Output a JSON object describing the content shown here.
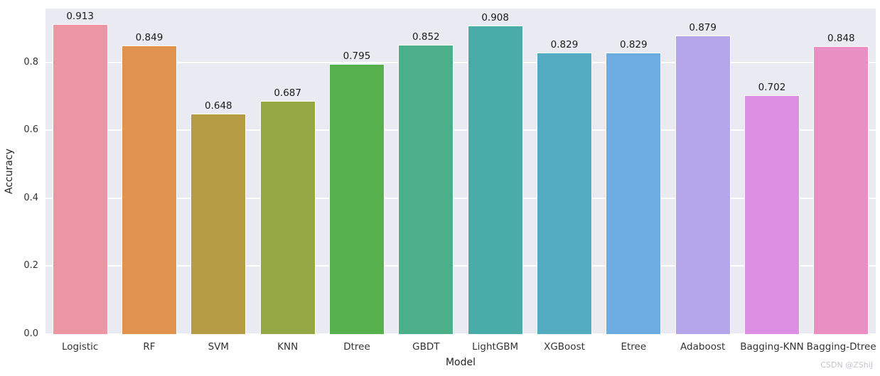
{
  "chart_data": {
    "type": "bar",
    "title": "",
    "xlabel": "Model",
    "ylabel": "Accuracy",
    "categories": [
      "Logistic",
      "RF",
      "SVM",
      "KNN",
      "Dtree",
      "GBDT",
      "LightGBM",
      "XGBoost",
      "Etree",
      "Adaboost",
      "Bagging-KNN",
      "Bagging-Dtree"
    ],
    "values": [
      0.913,
      0.849,
      0.648,
      0.687,
      0.795,
      0.852,
      0.908,
      0.829,
      0.829,
      0.879,
      0.702,
      0.848
    ],
    "value_labels": [
      "0.913",
      "0.849",
      "0.648",
      "0.687",
      "0.795",
      "0.852",
      "0.908",
      "0.829",
      "0.829",
      "0.879",
      "0.702",
      "0.848"
    ],
    "bar_colors": [
      "#eb96a2",
      "#e0924f",
      "#b59b44",
      "#93a845",
      "#56b04c",
      "#4bb08a",
      "#4aaca8",
      "#52abc0",
      "#6cace0",
      "#b4a6e8",
      "#dd8fe3",
      "#e98fc4"
    ],
    "y_ticks": [
      "0.0",
      "0.2",
      "0.4",
      "0.6",
      "0.8"
    ],
    "y_tick_values": [
      0.0,
      0.2,
      0.4,
      0.6,
      0.8
    ],
    "ylim": [
      0,
      0.958
    ],
    "grid": true,
    "legend": "none",
    "plot_bg": "#eaeaf2",
    "grid_color": "#ffffff",
    "text_color": "#262626"
  },
  "watermark": "CSDN @ZShiJ"
}
